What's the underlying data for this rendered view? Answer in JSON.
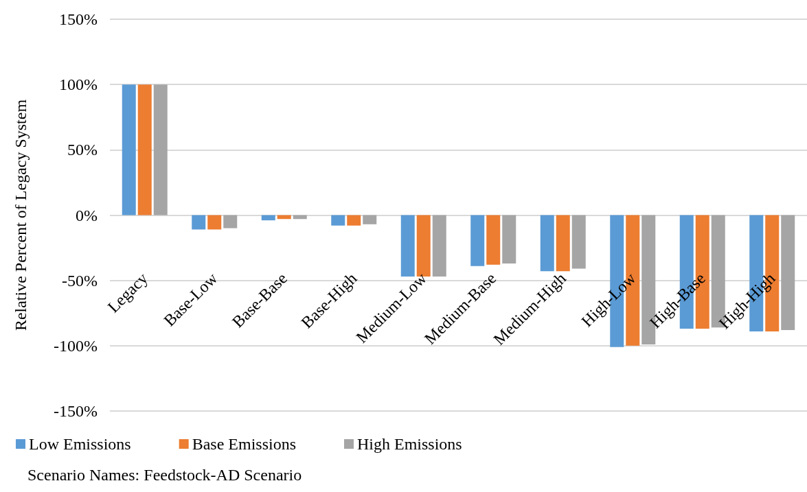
{
  "chart_data": {
    "type": "bar",
    "ylabel": "Relative Percent of Legacy System",
    "categories": [
      "Legacy",
      "Base-Low",
      "Base-Base",
      "Base-High",
      "Medium-Low",
      "Medium-Base",
      "Medium-High",
      "High-Low",
      "High-Base",
      "High-High"
    ],
    "series": [
      {
        "name": "Low Emissions",
        "color": "#5b9bd5",
        "values": [
          100,
          -11,
          -4,
          -8,
          -47,
          -39,
          -43,
          -101,
          -87,
          -89
        ]
      },
      {
        "name": "Base Emissions",
        "color": "#ed7d31",
        "values": [
          100,
          -11,
          -3,
          -8,
          -47,
          -38,
          -43,
          -100,
          -87,
          -89
        ]
      },
      {
        "name": "High Emissions",
        "color": "#a5a5a5",
        "values": [
          100,
          -10,
          -3,
          -7,
          -47,
          -37,
          -41,
          -99,
          -86,
          -88
        ]
      }
    ],
    "ylim": [
      -150,
      150
    ],
    "yticks": [
      {
        "value": -150,
        "label": "-150%"
      },
      {
        "value": -100,
        "label": "-100%"
      },
      {
        "value": -50,
        "label": "-50%"
      },
      {
        "value": 0,
        "label": "0%"
      },
      {
        "value": 50,
        "label": "50%"
      },
      {
        "value": 100,
        "label": "100%"
      },
      {
        "value": 150,
        "label": "150%"
      }
    ],
    "grid": "y",
    "legend": "bottom left",
    "annotations": [
      "Scenario Names: Feedstock-AD Scenario"
    ]
  }
}
